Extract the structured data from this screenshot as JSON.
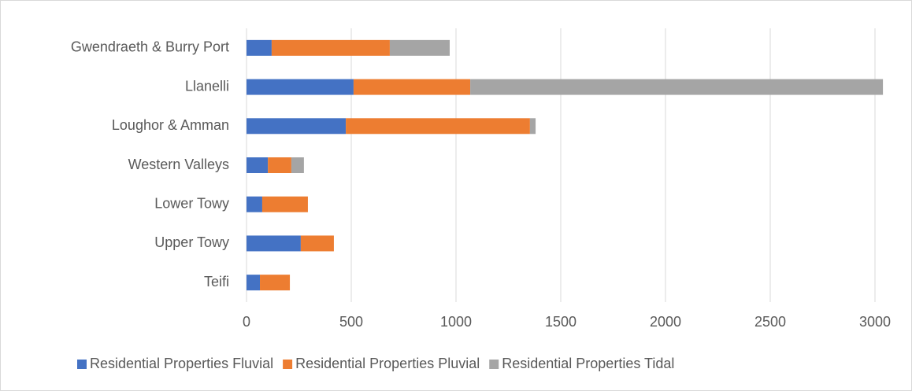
{
  "chart_data": {
    "type": "stacked_bar_horizontal",
    "categories": [
      "Gwendraeth & Burry Port",
      "Llanelli",
      "Loughor & Amman",
      "Western Valleys",
      "Lower Towy",
      "Upper Towy",
      "Teifi"
    ],
    "series": [
      {
        "name": "Residential Properties Fluvial",
        "color": "#4472c4",
        "values": [
          120,
          511,
          474,
          102,
          75,
          259,
          64
        ]
      },
      {
        "name": "Residential Properties Pluvial",
        "color": "#ed7d31",
        "values": [
          564,
          557,
          879,
          112,
          218,
          158,
          143
        ]
      },
      {
        "name": "Residential Properties Tidal",
        "color": "#a5a5a5",
        "values": [
          286,
          1970,
          27,
          60,
          0,
          0,
          0
        ]
      }
    ],
    "xlim": [
      0,
      3100
    ],
    "xticks": [
      0,
      500,
      1000,
      1500,
      2000,
      2500,
      3000
    ],
    "grid": true,
    "legend": "bottom"
  }
}
